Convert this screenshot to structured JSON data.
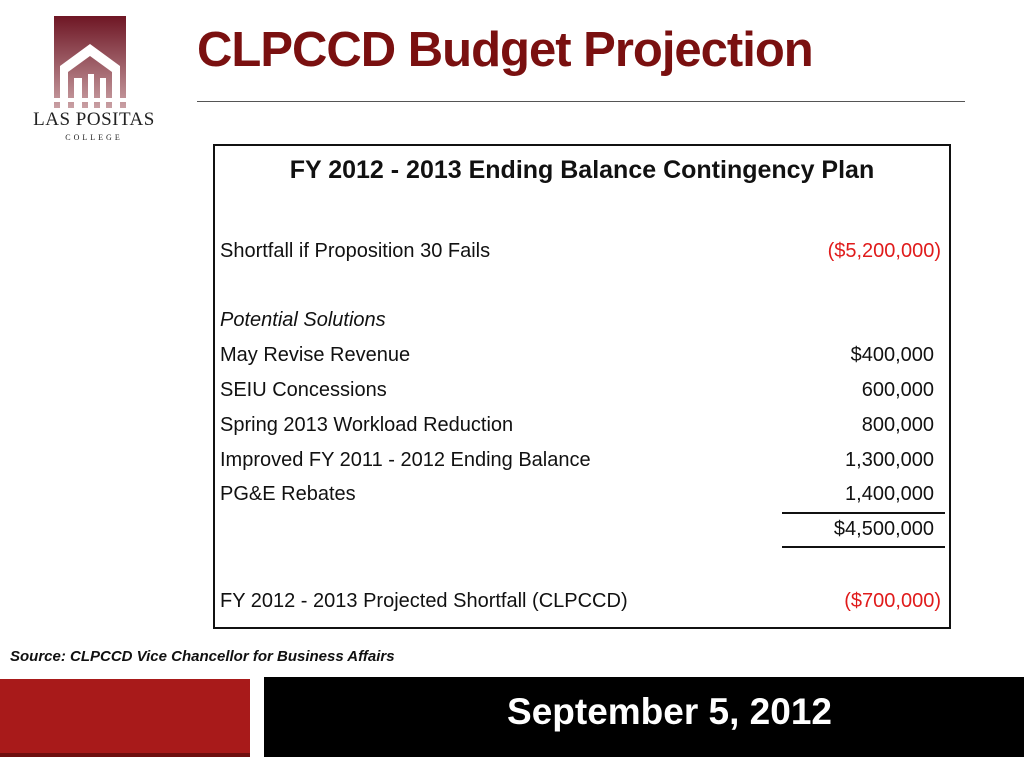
{
  "logo": {
    "name": "LAS POSITAS",
    "subtitle": "COLLEGE",
    "colors": {
      "maroon": "#7a1c28",
      "white": "#ffffff"
    }
  },
  "title": "CLPCCD Budget Projection",
  "table": {
    "heading": "FY 2012 - 2013 Ending Balance Contingency Plan",
    "shortfall": {
      "label": "Shortfall if Proposition 30 Fails",
      "value": "($5,200,000)"
    },
    "solutions_heading": "Potential Solutions",
    "solutions": [
      {
        "label": "May Revise Revenue",
        "value": "$400,000"
      },
      {
        "label": "SEIU Concessions",
        "value": "600,000"
      },
      {
        "label": "Spring 2013 Workload Reduction",
        "value": "800,000"
      },
      {
        "label": "Improved FY 2011 - 2012 Ending Balance",
        "value": "1,300,000"
      },
      {
        "label": "PG&E Rebates",
        "value": "1,400,000"
      }
    ],
    "total": "$4,500,000",
    "projected": {
      "label": "FY 2012 - 2013 Projected Shortfall (CLPCCD)",
      "value": "($700,000)"
    }
  },
  "source": "Source: CLPCCD Vice Chancellor for Business Affairs",
  "footer": {
    "date": "September 5, 2012"
  },
  "colors": {
    "title": "#7a1010",
    "negative": "#e01b1b",
    "footer_red": "#a81a1a",
    "footer_black": "#000000"
  }
}
